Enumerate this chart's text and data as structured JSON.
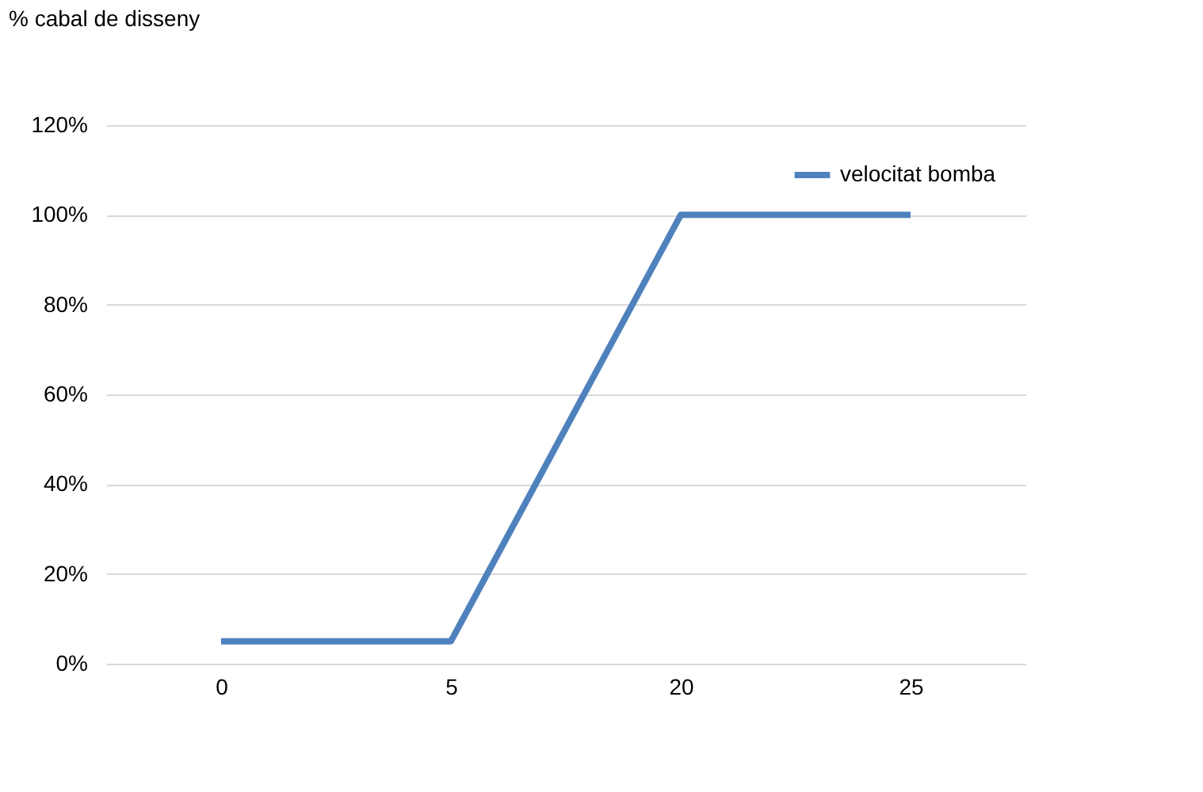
{
  "chart_data": {
    "type": "line",
    "ylabel": "% cabal de disseny",
    "categories": [
      "0",
      "5",
      "20",
      "25"
    ],
    "series": [
      {
        "name": "velocitat bomba",
        "color": "#4f81bd",
        "values": [
          5,
          5,
          100,
          100
        ]
      }
    ],
    "ylim": [
      0,
      120
    ],
    "yticks": [
      {
        "value": 0,
        "label": "0%"
      },
      {
        "value": 20,
        "label": "20%"
      },
      {
        "value": 40,
        "label": "40%"
      },
      {
        "value": 60,
        "label": "60%"
      },
      {
        "value": 80,
        "label": "80%"
      },
      {
        "value": 100,
        "label": "100%"
      },
      {
        "value": 120,
        "label": "120%"
      }
    ],
    "grid": "y",
    "legend": "top right",
    "marker": "none",
    "line_style": "solid"
  }
}
